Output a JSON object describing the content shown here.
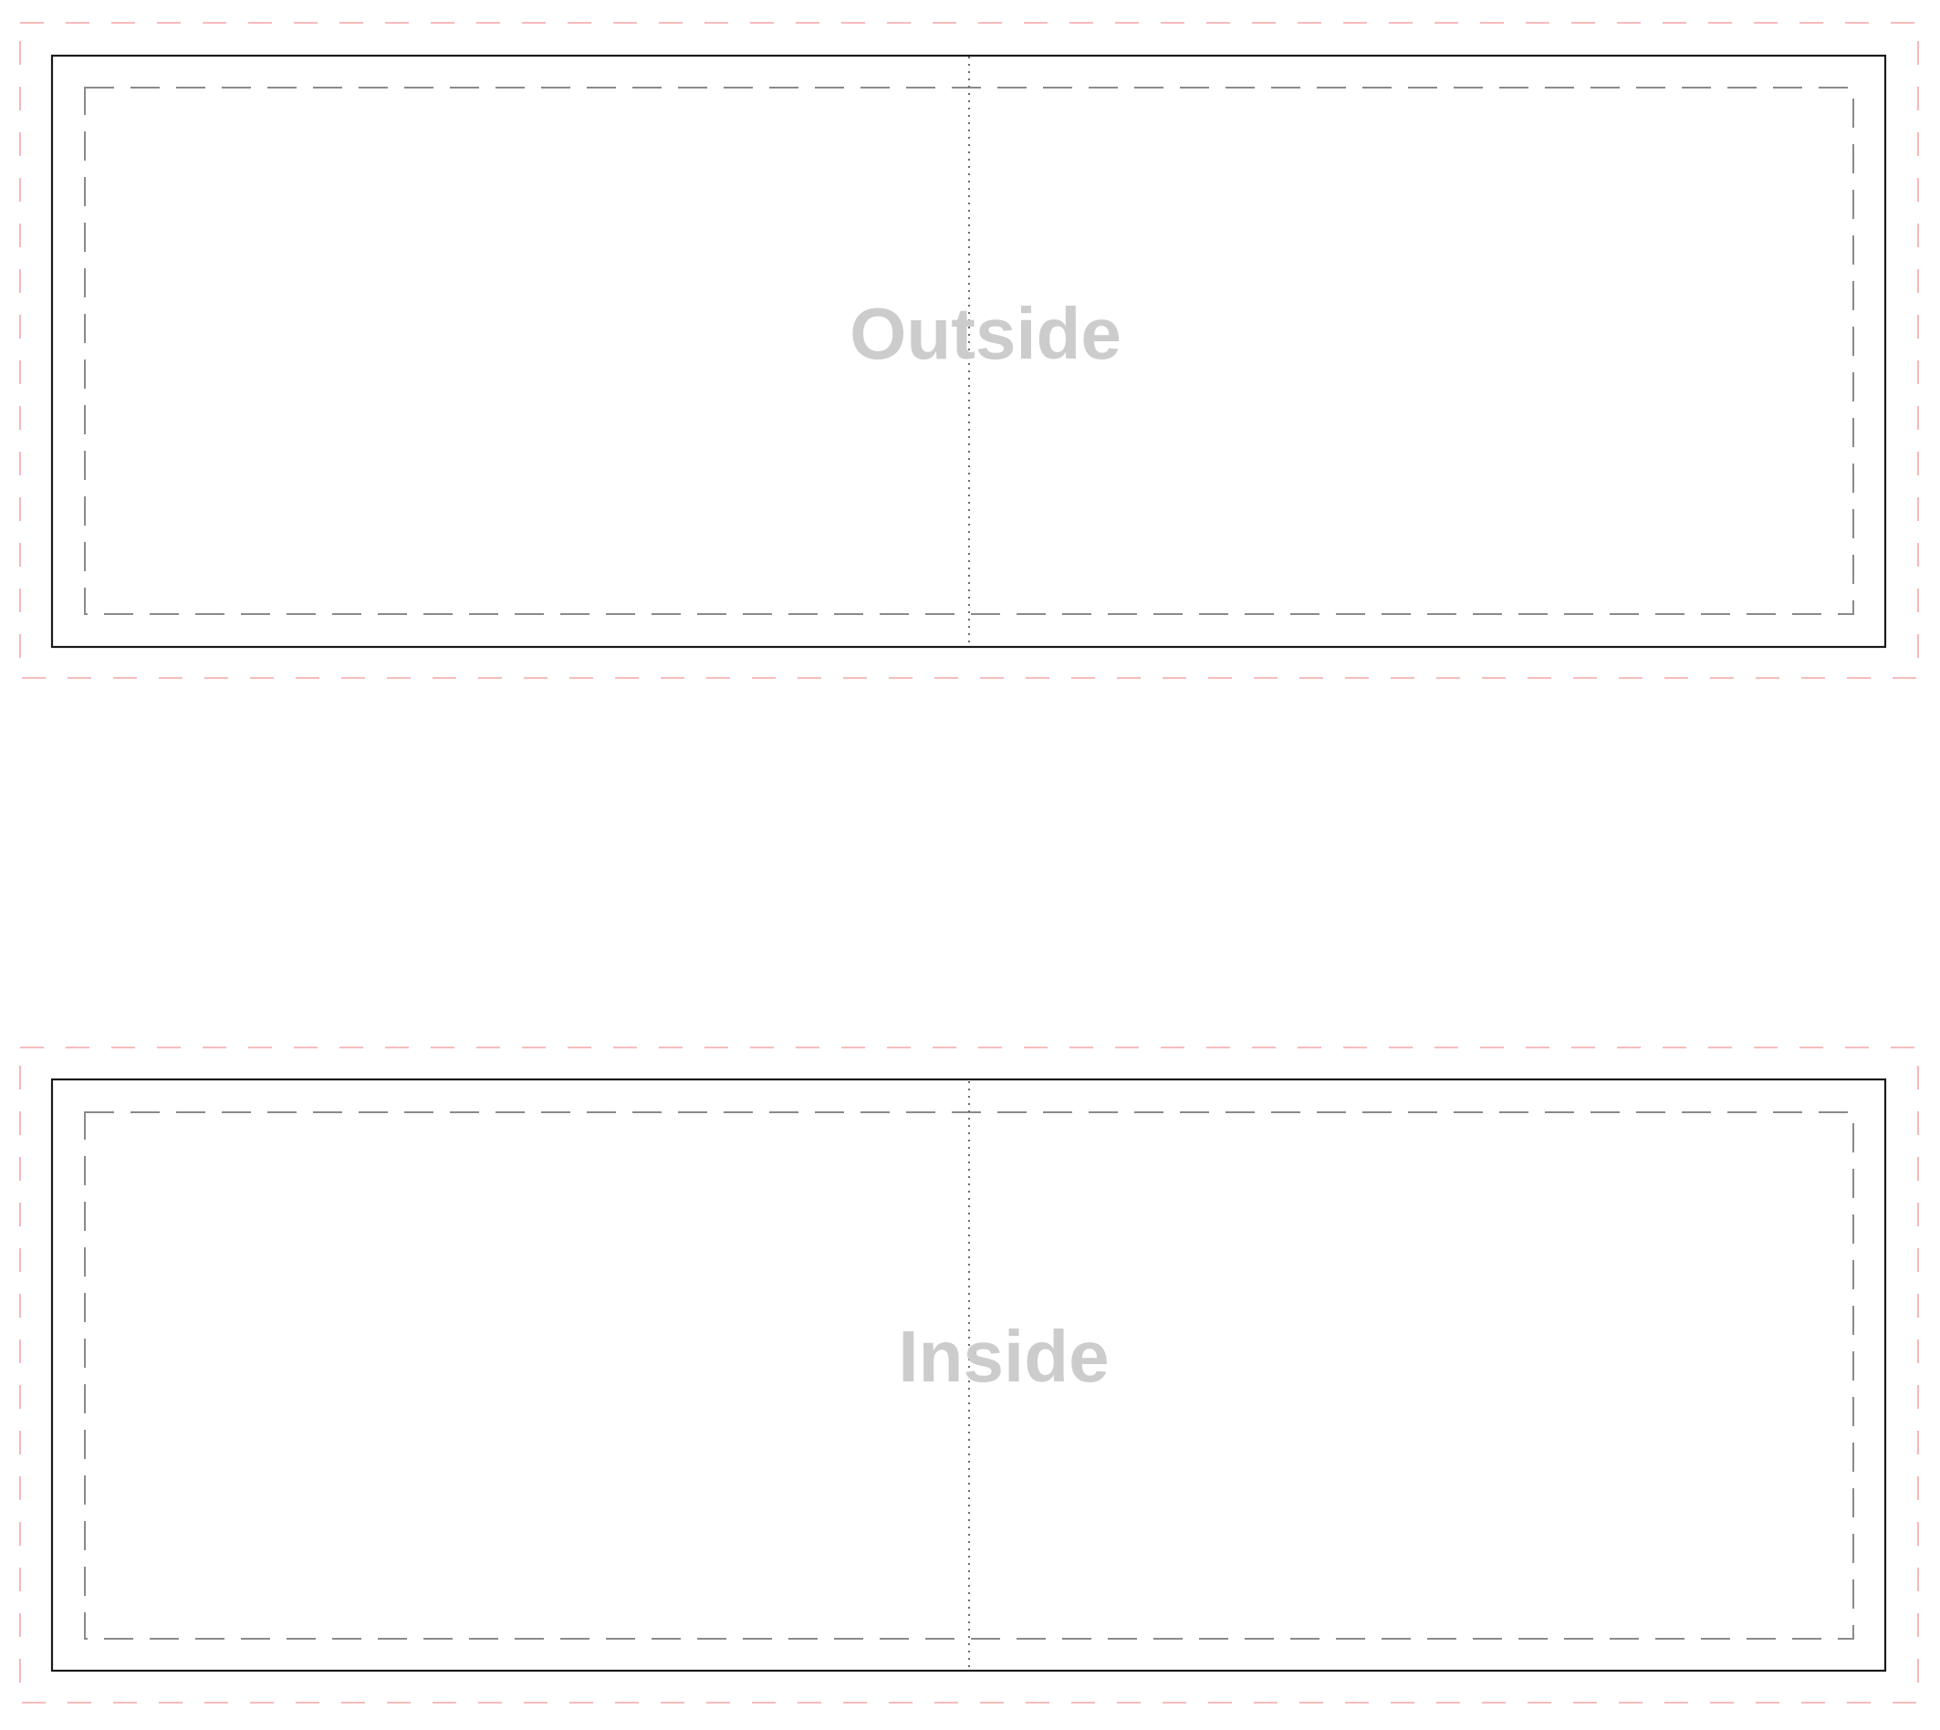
{
  "colors": {
    "bleed_line": "#f4a6a6",
    "trim_line": "#1a1a1a",
    "safe_line": "#8a8a8a",
    "fold_line": "#6b6b6b",
    "label_text": "#cccccc",
    "background": "#ffffff"
  },
  "panels": [
    {
      "key": "outside",
      "label": "Outside"
    },
    {
      "key": "inside",
      "label": "Inside"
    }
  ]
}
